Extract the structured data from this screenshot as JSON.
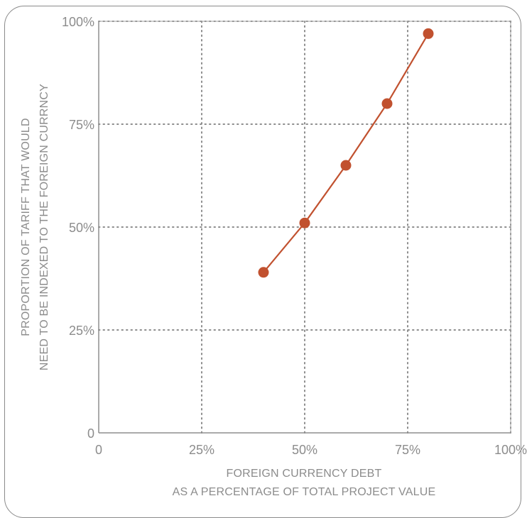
{
  "chart_data": {
    "type": "line",
    "title": "",
    "xlabel_lines": [
      "FOREIGN CURRENCY DEBT",
      "AS A PERCENTAGE OF TOTAL PROJECT VALUE"
    ],
    "ylabel_lines": [
      "PROPORTION OF TARIFF THAT WOULD",
      "NEED TO BE INDEXED TO THE FOREIGN CURRNCY"
    ],
    "xlim": [
      0,
      100
    ],
    "ylim": [
      0,
      100
    ],
    "x_ticks": [
      {
        "value": 0,
        "label": "0"
      },
      {
        "value": 25,
        "label": "25%"
      },
      {
        "value": 50,
        "label": "50%"
      },
      {
        "value": 75,
        "label": "75%"
      },
      {
        "value": 100,
        "label": "100%"
      }
    ],
    "y_ticks": [
      {
        "value": 0,
        "label": "0"
      },
      {
        "value": 25,
        "label": "25%"
      },
      {
        "value": 50,
        "label": "50%"
      },
      {
        "value": 75,
        "label": "75%"
      },
      {
        "value": 100,
        "label": "100%"
      }
    ],
    "grid": "dotted",
    "series": [
      {
        "color": "#c1512f",
        "x": [
          40,
          50,
          60,
          70,
          80
        ],
        "y": [
          39,
          51,
          65,
          80,
          97
        ]
      }
    ]
  }
}
